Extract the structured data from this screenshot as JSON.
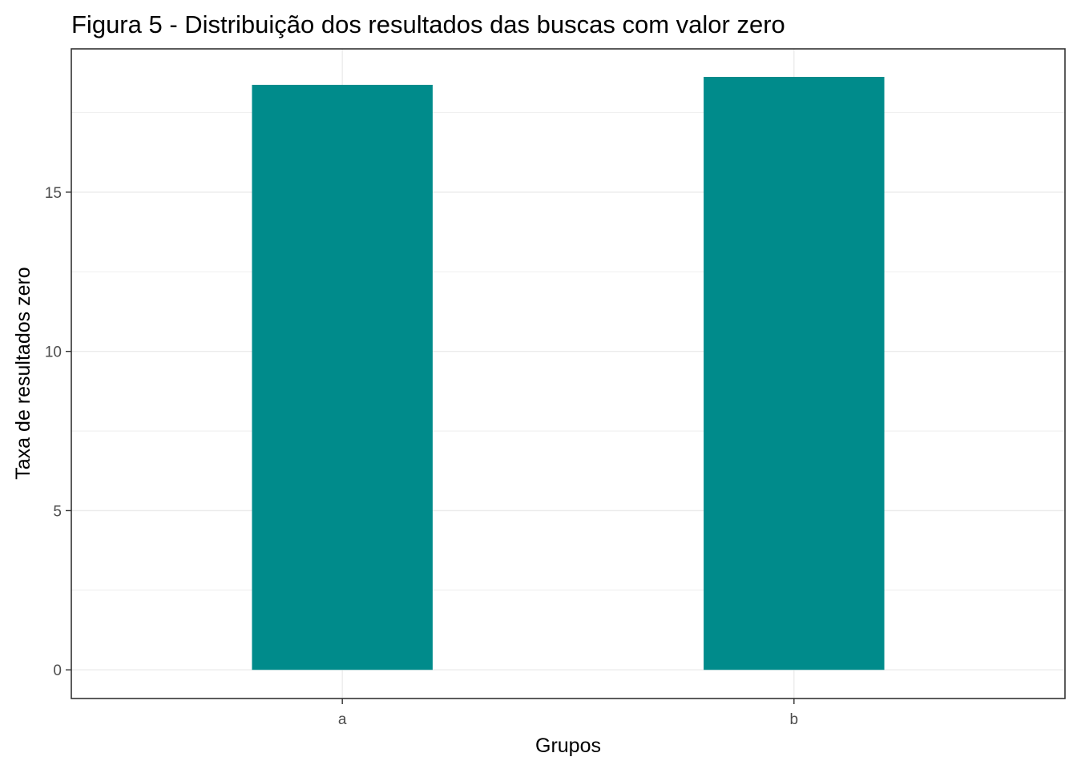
{
  "chart_data": {
    "type": "bar",
    "title": "Figura 5 - Distribuição dos resultados das buscas com valor zero",
    "xlabel": "Grupos",
    "ylabel": "Taxa de resultados zero",
    "categories": [
      "a",
      "b"
    ],
    "values": [
      18.37,
      18.62
    ],
    "ylim": [
      -0.9,
      19.5
    ],
    "yticks": [
      0,
      5,
      10,
      15
    ],
    "yminor": [
      2.5,
      7.5,
      12.5,
      17.5
    ],
    "grid": true,
    "legend": "none",
    "bar_color": "#008B8B"
  }
}
